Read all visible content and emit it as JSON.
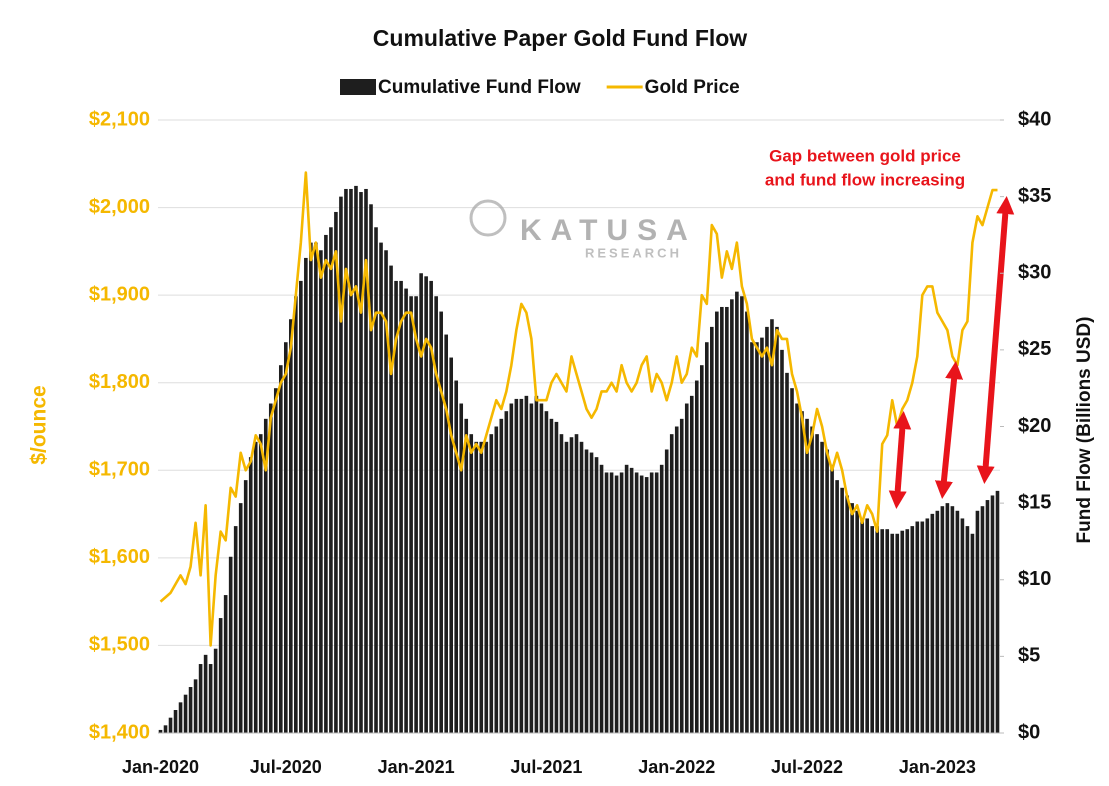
{
  "chart_data": {
    "type": "combo",
    "title": "Cumulative Paper Gold Fund Flow",
    "y_label": "$/ounce",
    "y2_label": "Fund Flow (Billions USD)",
    "annotation": [
      "Gap between gold price",
      "and fund flow increasing"
    ],
    "watermark": {
      "line1": "KATUSA",
      "line2": "RESEARCH"
    },
    "grid": true,
    "categories": [
      "Jan-2020",
      null,
      null,
      null,
      null,
      null,
      null,
      null,
      null,
      null,
      null,
      null,
      null,
      null,
      null,
      null,
      null,
      null,
      null,
      null,
      null,
      null,
      null,
      null,
      null,
      "Jul-2020",
      null,
      null,
      null,
      null,
      null,
      null,
      null,
      null,
      null,
      null,
      null,
      null,
      null,
      null,
      null,
      null,
      null,
      null,
      null,
      null,
      null,
      null,
      null,
      null,
      null,
      "Jan-2021",
      null,
      null,
      null,
      null,
      null,
      null,
      null,
      null,
      null,
      null,
      null,
      null,
      null,
      null,
      null,
      null,
      null,
      null,
      null,
      null,
      null,
      null,
      null,
      null,
      null,
      "Jul-2021",
      null,
      null,
      null,
      null,
      null,
      null,
      null,
      null,
      null,
      null,
      null,
      null,
      null,
      null,
      null,
      null,
      null,
      null,
      null,
      null,
      null,
      null,
      null,
      null,
      null,
      "Jan-2022",
      null,
      null,
      null,
      null,
      null,
      null,
      null,
      null,
      null,
      null,
      null,
      null,
      null,
      null,
      null,
      null,
      null,
      null,
      null,
      null,
      null,
      null,
      null,
      null,
      null,
      "Jul-2022",
      null,
      null,
      null,
      null,
      null,
      null,
      null,
      null,
      null,
      null,
      null,
      null,
      null,
      null,
      null,
      null,
      null,
      null,
      null,
      null,
      null,
      null,
      null,
      null,
      null,
      "Jan-2023",
      null,
      null,
      null,
      null,
      null,
      null,
      null,
      null,
      null,
      null,
      null,
      null
    ],
    "series": [
      {
        "name": "Cumulative Fund Flow",
        "type": "bar",
        "axis": "y2",
        "color": "#1e1e1e",
        "values": [
          0.2,
          0.5,
          1,
          1.5,
          2,
          2.5,
          3,
          3.5,
          4.5,
          5.1,
          4.5,
          5.5,
          7.5,
          9,
          11.5,
          13.5,
          15,
          16.5,
          18,
          19,
          19.5,
          20.5,
          21.5,
          22.5,
          24,
          25.5,
          27,
          28.5,
          29.5,
          31,
          32,
          32,
          31.5,
          32.5,
          33,
          34,
          35,
          35.5,
          35.5,
          35.7,
          35.3,
          35.5,
          34.5,
          33,
          32,
          31.5,
          30.5,
          29.5,
          29.5,
          29,
          28.5,
          28.5,
          30,
          29.8,
          29.5,
          28.5,
          27.5,
          26,
          24.5,
          23,
          21.5,
          20.5,
          19.5,
          19,
          19,
          19,
          19.5,
          20,
          20.5,
          21,
          21.5,
          21.8,
          21.8,
          22,
          21.5,
          22,
          21.5,
          21,
          20.5,
          20.3,
          19.5,
          19,
          19.3,
          19.5,
          19,
          18.5,
          18.3,
          18,
          17.5,
          17,
          17,
          16.8,
          17,
          17.5,
          17.3,
          17,
          16.8,
          16.7,
          17,
          17,
          17.5,
          18.5,
          19.5,
          20,
          20.5,
          21.5,
          22,
          23,
          24,
          25.5,
          26.5,
          27.5,
          27.8,
          27.8,
          28.3,
          28.8,
          28.5,
          27.5,
          25.5,
          25.5,
          25.8,
          26.5,
          27,
          26.5,
          25,
          23.5,
          22.5,
          21.5,
          21,
          20.5,
          20,
          19.5,
          19,
          18.5,
          17.5,
          16.5,
          16,
          15.5,
          15,
          14.5,
          14,
          14,
          13.5,
          13.5,
          13.3,
          13.3,
          13,
          13,
          13.2,
          13.3,
          13.5,
          13.8,
          13.8,
          14,
          14.3,
          14.5,
          14.8,
          15,
          14.8,
          14.5,
          14,
          13.5,
          13,
          14.5,
          14.8,
          15.2,
          15.5,
          15.8
        ]
      },
      {
        "name": "Gold Price",
        "type": "line",
        "axis": "y",
        "color": "#f5b800",
        "values": [
          1550,
          1555,
          1560,
          1570,
          1580,
          1570,
          1590,
          1640,
          1580,
          1660,
          1500,
          1580,
          1630,
          1620,
          1680,
          1670,
          1720,
          1700,
          1710,
          1740,
          1730,
          1700,
          1760,
          1780,
          1800,
          1810,
          1840,
          1900,
          1960,
          2040,
          1940,
          1960,
          1920,
          1940,
          1930,
          1950,
          1870,
          1930,
          1900,
          1910,
          1880,
          1940,
          1860,
          1880,
          1880,
          1870,
          1810,
          1850,
          1870,
          1880,
          1880,
          1850,
          1830,
          1850,
          1840,
          1810,
          1790,
          1770,
          1740,
          1720,
          1700,
          1740,
          1720,
          1730,
          1720,
          1740,
          1760,
          1780,
          1770,
          1790,
          1820,
          1860,
          1890,
          1880,
          1850,
          1780,
          1780,
          1780,
          1800,
          1810,
          1800,
          1790,
          1830,
          1810,
          1790,
          1770,
          1760,
          1770,
          1790,
          1790,
          1800,
          1790,
          1820,
          1800,
          1790,
          1800,
          1820,
          1830,
          1790,
          1810,
          1800,
          1780,
          1800,
          1830,
          1800,
          1810,
          1840,
          1830,
          1900,
          1890,
          1980,
          1970,
          1920,
          1950,
          1930,
          1960,
          1910,
          1890,
          1850,
          1840,
          1830,
          1840,
          1820,
          1860,
          1850,
          1850,
          1810,
          1790,
          1760,
          1720,
          1740,
          1770,
          1750,
          1720,
          1700,
          1720,
          1700,
          1670,
          1650,
          1660,
          1640,
          1660,
          1650,
          1630,
          1730,
          1740,
          1780,
          1750,
          1770,
          1780,
          1800,
          1830,
          1900,
          1910,
          1910,
          1880,
          1870,
          1860,
          1830,
          1820,
          1860,
          1870,
          1960,
          1990,
          1980,
          2000,
          2020,
          2020
        ]
      }
    ],
    "ylim": [
      1400,
      2100
    ],
    "yticks": [
      {
        "value": 1400,
        "label": "$1,400"
      },
      {
        "value": 1500,
        "label": "$1,500"
      },
      {
        "value": 1600,
        "label": "$1,600"
      },
      {
        "value": 1700,
        "label": "$1,700"
      },
      {
        "value": 1800,
        "label": "$1,800"
      },
      {
        "value": 1900,
        "label": "$1,900"
      },
      {
        "value": 2000,
        "label": "$2,000"
      },
      {
        "value": 2100,
        "label": "$2,100"
      }
    ],
    "y2lim": [
      0,
      40
    ],
    "y2ticks": [
      {
        "value": 0,
        "label": "$0"
      },
      {
        "value": 5,
        "label": "$5"
      },
      {
        "value": 10,
        "label": "$10"
      },
      {
        "value": 15,
        "label": "$15"
      },
      {
        "value": 20,
        "label": "$20"
      },
      {
        "value": 25,
        "label": "$25"
      },
      {
        "value": 30,
        "label": "$30"
      },
      {
        "value": 35,
        "label": "$35"
      },
      {
        "value": 40,
        "label": "$40"
      }
    ]
  }
}
